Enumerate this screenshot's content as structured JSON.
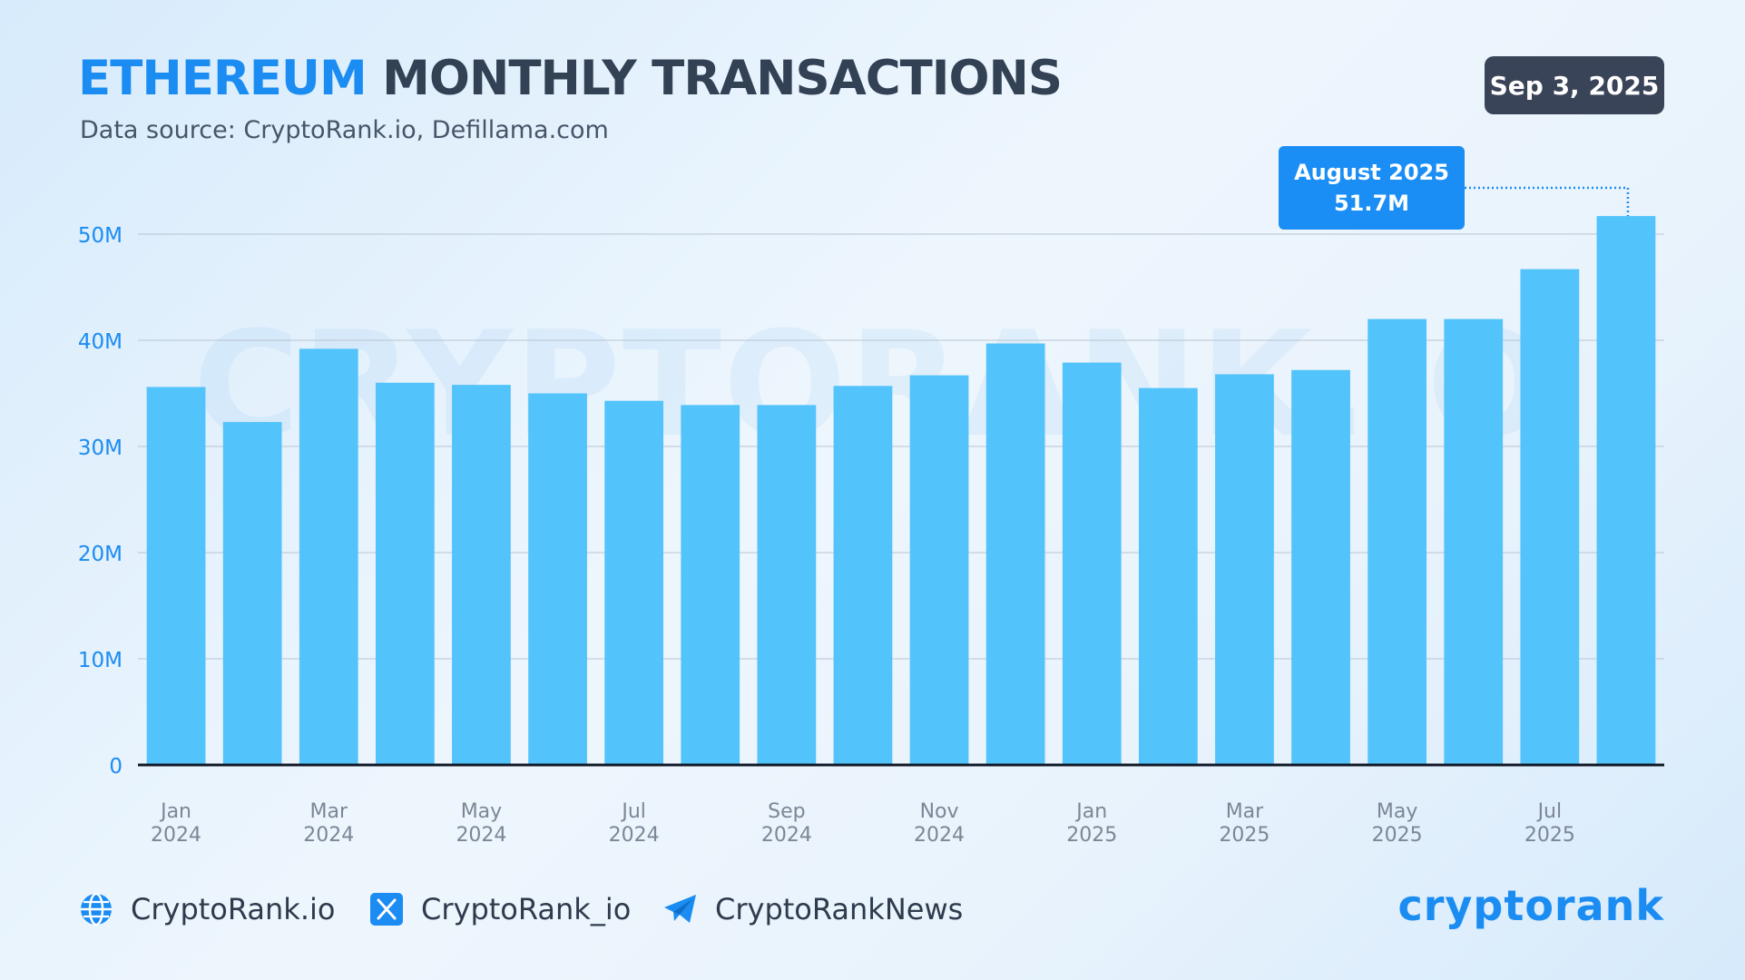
{
  "header": {
    "title_accent": "ETHEREUM",
    "title_rest": "MONTHLY TRANSACTIONS",
    "subtitle": "Data source: CryptoRank.io, Defillama.com",
    "date": "Sep 3, 2025"
  },
  "watermark": "CRYPTORANK.IO",
  "callout": {
    "line1": "August 2025",
    "line2": "51.7M"
  },
  "footer": {
    "website": "CryptoRank.io",
    "x_handle": "CryptoRank_io",
    "telegram": "CryptoRankNews",
    "logo_text": "cryptorank"
  },
  "colors": {
    "accent": "#1b8cf2",
    "bar": "#52c3fb",
    "title_dark": "#334155",
    "badge_bg": "#3a4458",
    "callout_bg": "#1a8ef5"
  },
  "chart_data": {
    "type": "bar",
    "categories": [
      "Jan 2024",
      "Feb 2024",
      "Mar 2024",
      "Apr 2024",
      "May 2024",
      "Jun 2024",
      "Jul 2024",
      "Aug 2024",
      "Sep 2024",
      "Oct 2024",
      "Nov 2024",
      "Dec 2024",
      "Jan 2025",
      "Feb 2025",
      "Mar 2025",
      "Apr 2025",
      "May 2025",
      "Jun 2025",
      "Jul 2025",
      "Aug 2025"
    ],
    "values": [
      35.6,
      32.3,
      39.2,
      36.0,
      35.8,
      35.0,
      34.3,
      33.9,
      33.9,
      35.7,
      36.7,
      39.7,
      37.9,
      35.5,
      36.8,
      37.2,
      42.0,
      42.0,
      46.7,
      51.7
    ],
    "unit": "M",
    "ylim": [
      0,
      50
    ],
    "yticks": [
      "0",
      "10M",
      "20M",
      "30M",
      "40M",
      "50M"
    ],
    "xtick_labels": [
      {
        "month": "Jan",
        "year": "2024",
        "index": 0
      },
      {
        "month": "Mar",
        "year": "2024",
        "index": 2
      },
      {
        "month": "May",
        "year": "2024",
        "index": 4
      },
      {
        "month": "Jul",
        "year": "2024",
        "index": 6
      },
      {
        "month": "Sep",
        "year": "2024",
        "index": 8
      },
      {
        "month": "Nov",
        "year": "2024",
        "index": 10
      },
      {
        "month": "Jan",
        "year": "2025",
        "index": 12
      },
      {
        "month": "Mar",
        "year": "2025",
        "index": 14
      },
      {
        "month": "May",
        "year": "2025",
        "index": 16
      },
      {
        "month": "Jul",
        "year": "2025",
        "index": 18
      }
    ],
    "grid": true,
    "legend": "none"
  }
}
